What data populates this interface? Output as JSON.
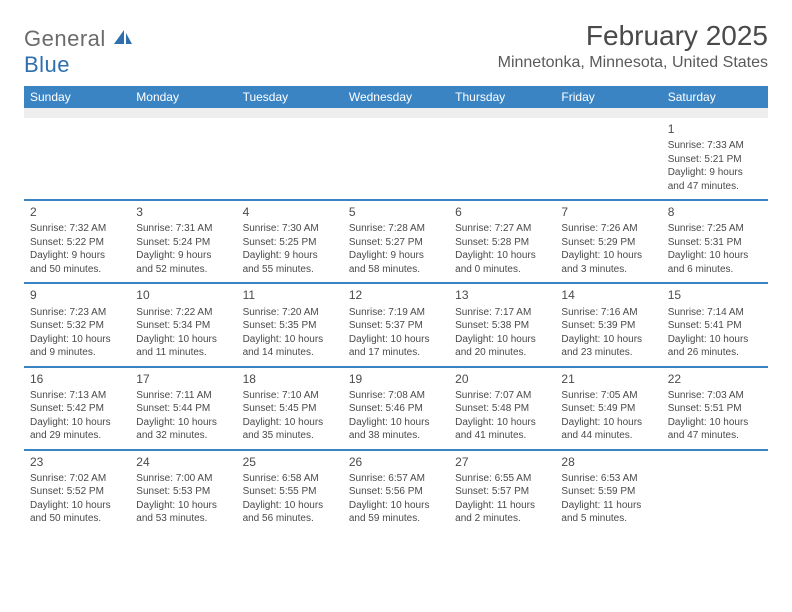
{
  "brand": {
    "part1": "General",
    "part2": "Blue"
  },
  "title": "February 2025",
  "location": "Minnetonka, Minnesota, United States",
  "colors": {
    "header_bar": "#3b84c4",
    "spacer": "#eeeeee",
    "text": "#4a4a4a",
    "brand_blue": "#2f6fae",
    "brand_gray": "#6b6b6b"
  },
  "day_names": [
    "Sunday",
    "Monday",
    "Tuesday",
    "Wednesday",
    "Thursday",
    "Friday",
    "Saturday"
  ],
  "weeks": [
    [
      null,
      null,
      null,
      null,
      null,
      null,
      {
        "n": "1",
        "sr": "Sunrise: 7:33 AM",
        "ss": "Sunset: 5:21 PM",
        "dl1": "Daylight: 9 hours",
        "dl2": "and 47 minutes."
      }
    ],
    [
      {
        "n": "2",
        "sr": "Sunrise: 7:32 AM",
        "ss": "Sunset: 5:22 PM",
        "dl1": "Daylight: 9 hours",
        "dl2": "and 50 minutes."
      },
      {
        "n": "3",
        "sr": "Sunrise: 7:31 AM",
        "ss": "Sunset: 5:24 PM",
        "dl1": "Daylight: 9 hours",
        "dl2": "and 52 minutes."
      },
      {
        "n": "4",
        "sr": "Sunrise: 7:30 AM",
        "ss": "Sunset: 5:25 PM",
        "dl1": "Daylight: 9 hours",
        "dl2": "and 55 minutes."
      },
      {
        "n": "5",
        "sr": "Sunrise: 7:28 AM",
        "ss": "Sunset: 5:27 PM",
        "dl1": "Daylight: 9 hours",
        "dl2": "and 58 minutes."
      },
      {
        "n": "6",
        "sr": "Sunrise: 7:27 AM",
        "ss": "Sunset: 5:28 PM",
        "dl1": "Daylight: 10 hours",
        "dl2": "and 0 minutes."
      },
      {
        "n": "7",
        "sr": "Sunrise: 7:26 AM",
        "ss": "Sunset: 5:29 PM",
        "dl1": "Daylight: 10 hours",
        "dl2": "and 3 minutes."
      },
      {
        "n": "8",
        "sr": "Sunrise: 7:25 AM",
        "ss": "Sunset: 5:31 PM",
        "dl1": "Daylight: 10 hours",
        "dl2": "and 6 minutes."
      }
    ],
    [
      {
        "n": "9",
        "sr": "Sunrise: 7:23 AM",
        "ss": "Sunset: 5:32 PM",
        "dl1": "Daylight: 10 hours",
        "dl2": "and 9 minutes."
      },
      {
        "n": "10",
        "sr": "Sunrise: 7:22 AM",
        "ss": "Sunset: 5:34 PM",
        "dl1": "Daylight: 10 hours",
        "dl2": "and 11 minutes."
      },
      {
        "n": "11",
        "sr": "Sunrise: 7:20 AM",
        "ss": "Sunset: 5:35 PM",
        "dl1": "Daylight: 10 hours",
        "dl2": "and 14 minutes."
      },
      {
        "n": "12",
        "sr": "Sunrise: 7:19 AM",
        "ss": "Sunset: 5:37 PM",
        "dl1": "Daylight: 10 hours",
        "dl2": "and 17 minutes."
      },
      {
        "n": "13",
        "sr": "Sunrise: 7:17 AM",
        "ss": "Sunset: 5:38 PM",
        "dl1": "Daylight: 10 hours",
        "dl2": "and 20 minutes."
      },
      {
        "n": "14",
        "sr": "Sunrise: 7:16 AM",
        "ss": "Sunset: 5:39 PM",
        "dl1": "Daylight: 10 hours",
        "dl2": "and 23 minutes."
      },
      {
        "n": "15",
        "sr": "Sunrise: 7:14 AM",
        "ss": "Sunset: 5:41 PM",
        "dl1": "Daylight: 10 hours",
        "dl2": "and 26 minutes."
      }
    ],
    [
      {
        "n": "16",
        "sr": "Sunrise: 7:13 AM",
        "ss": "Sunset: 5:42 PM",
        "dl1": "Daylight: 10 hours",
        "dl2": "and 29 minutes."
      },
      {
        "n": "17",
        "sr": "Sunrise: 7:11 AM",
        "ss": "Sunset: 5:44 PM",
        "dl1": "Daylight: 10 hours",
        "dl2": "and 32 minutes."
      },
      {
        "n": "18",
        "sr": "Sunrise: 7:10 AM",
        "ss": "Sunset: 5:45 PM",
        "dl1": "Daylight: 10 hours",
        "dl2": "and 35 minutes."
      },
      {
        "n": "19",
        "sr": "Sunrise: 7:08 AM",
        "ss": "Sunset: 5:46 PM",
        "dl1": "Daylight: 10 hours",
        "dl2": "and 38 minutes."
      },
      {
        "n": "20",
        "sr": "Sunrise: 7:07 AM",
        "ss": "Sunset: 5:48 PM",
        "dl1": "Daylight: 10 hours",
        "dl2": "and 41 minutes."
      },
      {
        "n": "21",
        "sr": "Sunrise: 7:05 AM",
        "ss": "Sunset: 5:49 PM",
        "dl1": "Daylight: 10 hours",
        "dl2": "and 44 minutes."
      },
      {
        "n": "22",
        "sr": "Sunrise: 7:03 AM",
        "ss": "Sunset: 5:51 PM",
        "dl1": "Daylight: 10 hours",
        "dl2": "and 47 minutes."
      }
    ],
    [
      {
        "n": "23",
        "sr": "Sunrise: 7:02 AM",
        "ss": "Sunset: 5:52 PM",
        "dl1": "Daylight: 10 hours",
        "dl2": "and 50 minutes."
      },
      {
        "n": "24",
        "sr": "Sunrise: 7:00 AM",
        "ss": "Sunset: 5:53 PM",
        "dl1": "Daylight: 10 hours",
        "dl2": "and 53 minutes."
      },
      {
        "n": "25",
        "sr": "Sunrise: 6:58 AM",
        "ss": "Sunset: 5:55 PM",
        "dl1": "Daylight: 10 hours",
        "dl2": "and 56 minutes."
      },
      {
        "n": "26",
        "sr": "Sunrise: 6:57 AM",
        "ss": "Sunset: 5:56 PM",
        "dl1": "Daylight: 10 hours",
        "dl2": "and 59 minutes."
      },
      {
        "n": "27",
        "sr": "Sunrise: 6:55 AM",
        "ss": "Sunset: 5:57 PM",
        "dl1": "Daylight: 11 hours",
        "dl2": "and 2 minutes."
      },
      {
        "n": "28",
        "sr": "Sunrise: 6:53 AM",
        "ss": "Sunset: 5:59 PM",
        "dl1": "Daylight: 11 hours",
        "dl2": "and 5 minutes."
      },
      null
    ]
  ]
}
